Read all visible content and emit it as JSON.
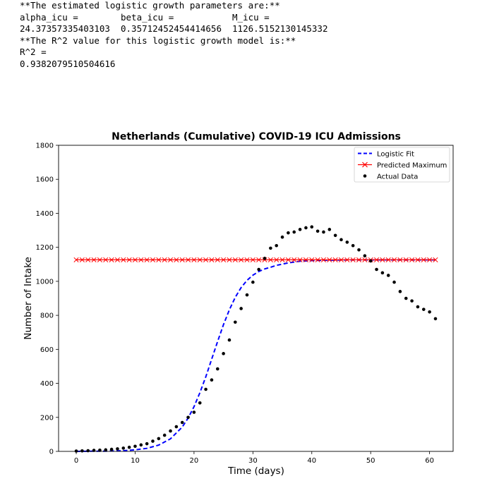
{
  "output": {
    "line1": "**The estimated logistic growth parameters are:**",
    "line2": "",
    "line3": "alpha_icu =        beta_icu =           M_icu =",
    "line4": "24.37357335403103  0.35712452454414656  1126.5152130145332",
    "line5": "",
    "line6": "**The R^2 value for this logistic growth model is:**",
    "line7": "",
    "line8": "R^2 =",
    "line9": "0.9382079510504616"
  },
  "chart_data": {
    "type": "line",
    "title": "Netherlands (Cumulative) COVID-19 ICU Admissions",
    "xlabel": "Time (days)",
    "ylabel": "Number of Intake",
    "xlim": [
      -3,
      64
    ],
    "ylim": [
      0,
      1800
    ],
    "xticks": [
      0,
      10,
      20,
      30,
      40,
      50,
      60
    ],
    "yticks": [
      0,
      200,
      400,
      600,
      800,
      1000,
      1200,
      1400,
      1600,
      1800
    ],
    "legend_position": "top-right",
    "series": [
      {
        "name": "Logistic Fit",
        "kind": "dashed-line",
        "color": "#0000ff",
        "x": [
          0,
          2,
          4,
          6,
          8,
          10,
          12,
          14,
          16,
          18,
          19,
          20,
          21,
          22,
          23,
          24,
          25,
          26,
          27,
          28,
          29,
          30,
          31,
          32,
          33,
          34,
          36,
          38,
          40,
          42,
          44,
          46,
          48,
          50,
          52,
          54,
          56,
          58,
          60,
          61
        ],
        "y": [
          0,
          1,
          1,
          2,
          4,
          9,
          18,
          37,
          74,
          143,
          196,
          263,
          345,
          439,
          542,
          646,
          745,
          833,
          906,
          963,
          1006,
          1036,
          1058,
          1073,
          1083,
          1094,
          1108,
          1118,
          1122,
          1124,
          1125,
          1126,
          1126,
          1126,
          1126,
          1126,
          1126,
          1126,
          1126,
          1126
        ]
      },
      {
        "name": "Predicted Maximum",
        "kind": "line-x",
        "color": "#ff0000",
        "x": [
          0,
          1,
          2,
          3,
          4,
          5,
          6,
          7,
          8,
          9,
          10,
          11,
          12,
          13,
          14,
          15,
          16,
          17,
          18,
          19,
          20,
          21,
          22,
          23,
          24,
          25,
          26,
          27,
          28,
          29,
          30,
          31,
          32,
          33,
          34,
          35,
          36,
          37,
          38,
          39,
          40,
          41,
          42,
          43,
          44,
          45,
          46,
          47,
          48,
          49,
          50,
          51,
          52,
          53,
          54,
          55,
          56,
          57,
          58,
          59,
          60,
          61
        ],
        "y": [
          1126.5,
          1126.5,
          1126.5,
          1126.5,
          1126.5,
          1126.5,
          1126.5,
          1126.5,
          1126.5,
          1126.5,
          1126.5,
          1126.5,
          1126.5,
          1126.5,
          1126.5,
          1126.5,
          1126.5,
          1126.5,
          1126.5,
          1126.5,
          1126.5,
          1126.5,
          1126.5,
          1126.5,
          1126.5,
          1126.5,
          1126.5,
          1126.5,
          1126.5,
          1126.5,
          1126.5,
          1126.5,
          1126.5,
          1126.5,
          1126.5,
          1126.5,
          1126.5,
          1126.5,
          1126.5,
          1126.5,
          1126.5,
          1126.5,
          1126.5,
          1126.5,
          1126.5,
          1126.5,
          1126.5,
          1126.5,
          1126.5,
          1126.5,
          1126.5,
          1126.5,
          1126.5,
          1126.5,
          1126.5,
          1126.5,
          1126.5,
          1126.5,
          1126.5,
          1126.5,
          1126.5,
          1126.5
        ]
      },
      {
        "name": "Actual Data",
        "kind": "scatter",
        "color": "#000000",
        "x": [
          0,
          1,
          2,
          3,
          4,
          5,
          6,
          7,
          8,
          9,
          10,
          11,
          12,
          13,
          14,
          15,
          16,
          17,
          18,
          19,
          20,
          21,
          22,
          23,
          24,
          25,
          26,
          27,
          28,
          29,
          30,
          31,
          32,
          33,
          34,
          35,
          36,
          37,
          38,
          39,
          40,
          41,
          42,
          43,
          44,
          45,
          46,
          47,
          48,
          49,
          50,
          51,
          52,
          53,
          54,
          55,
          56,
          57,
          58,
          59,
          60,
          61
        ],
        "y": [
          2,
          3,
          4,
          6,
          7,
          9,
          12,
          15,
          19,
          24,
          30,
          38,
          45,
          60,
          75,
          95,
          120,
          145,
          170,
          200,
          230,
          285,
          365,
          420,
          485,
          575,
          655,
          760,
          840,
          920,
          995,
          1070,
          1135,
          1195,
          1210,
          1260,
          1285,
          1290,
          1305,
          1315,
          1320,
          1295,
          1290,
          1305,
          1270,
          1245,
          1230,
          1210,
          1185,
          1150,
          1120,
          1070,
          1050,
          1035,
          995,
          940,
          900,
          885,
          850,
          835,
          820,
          780
        ]
      }
    ]
  }
}
